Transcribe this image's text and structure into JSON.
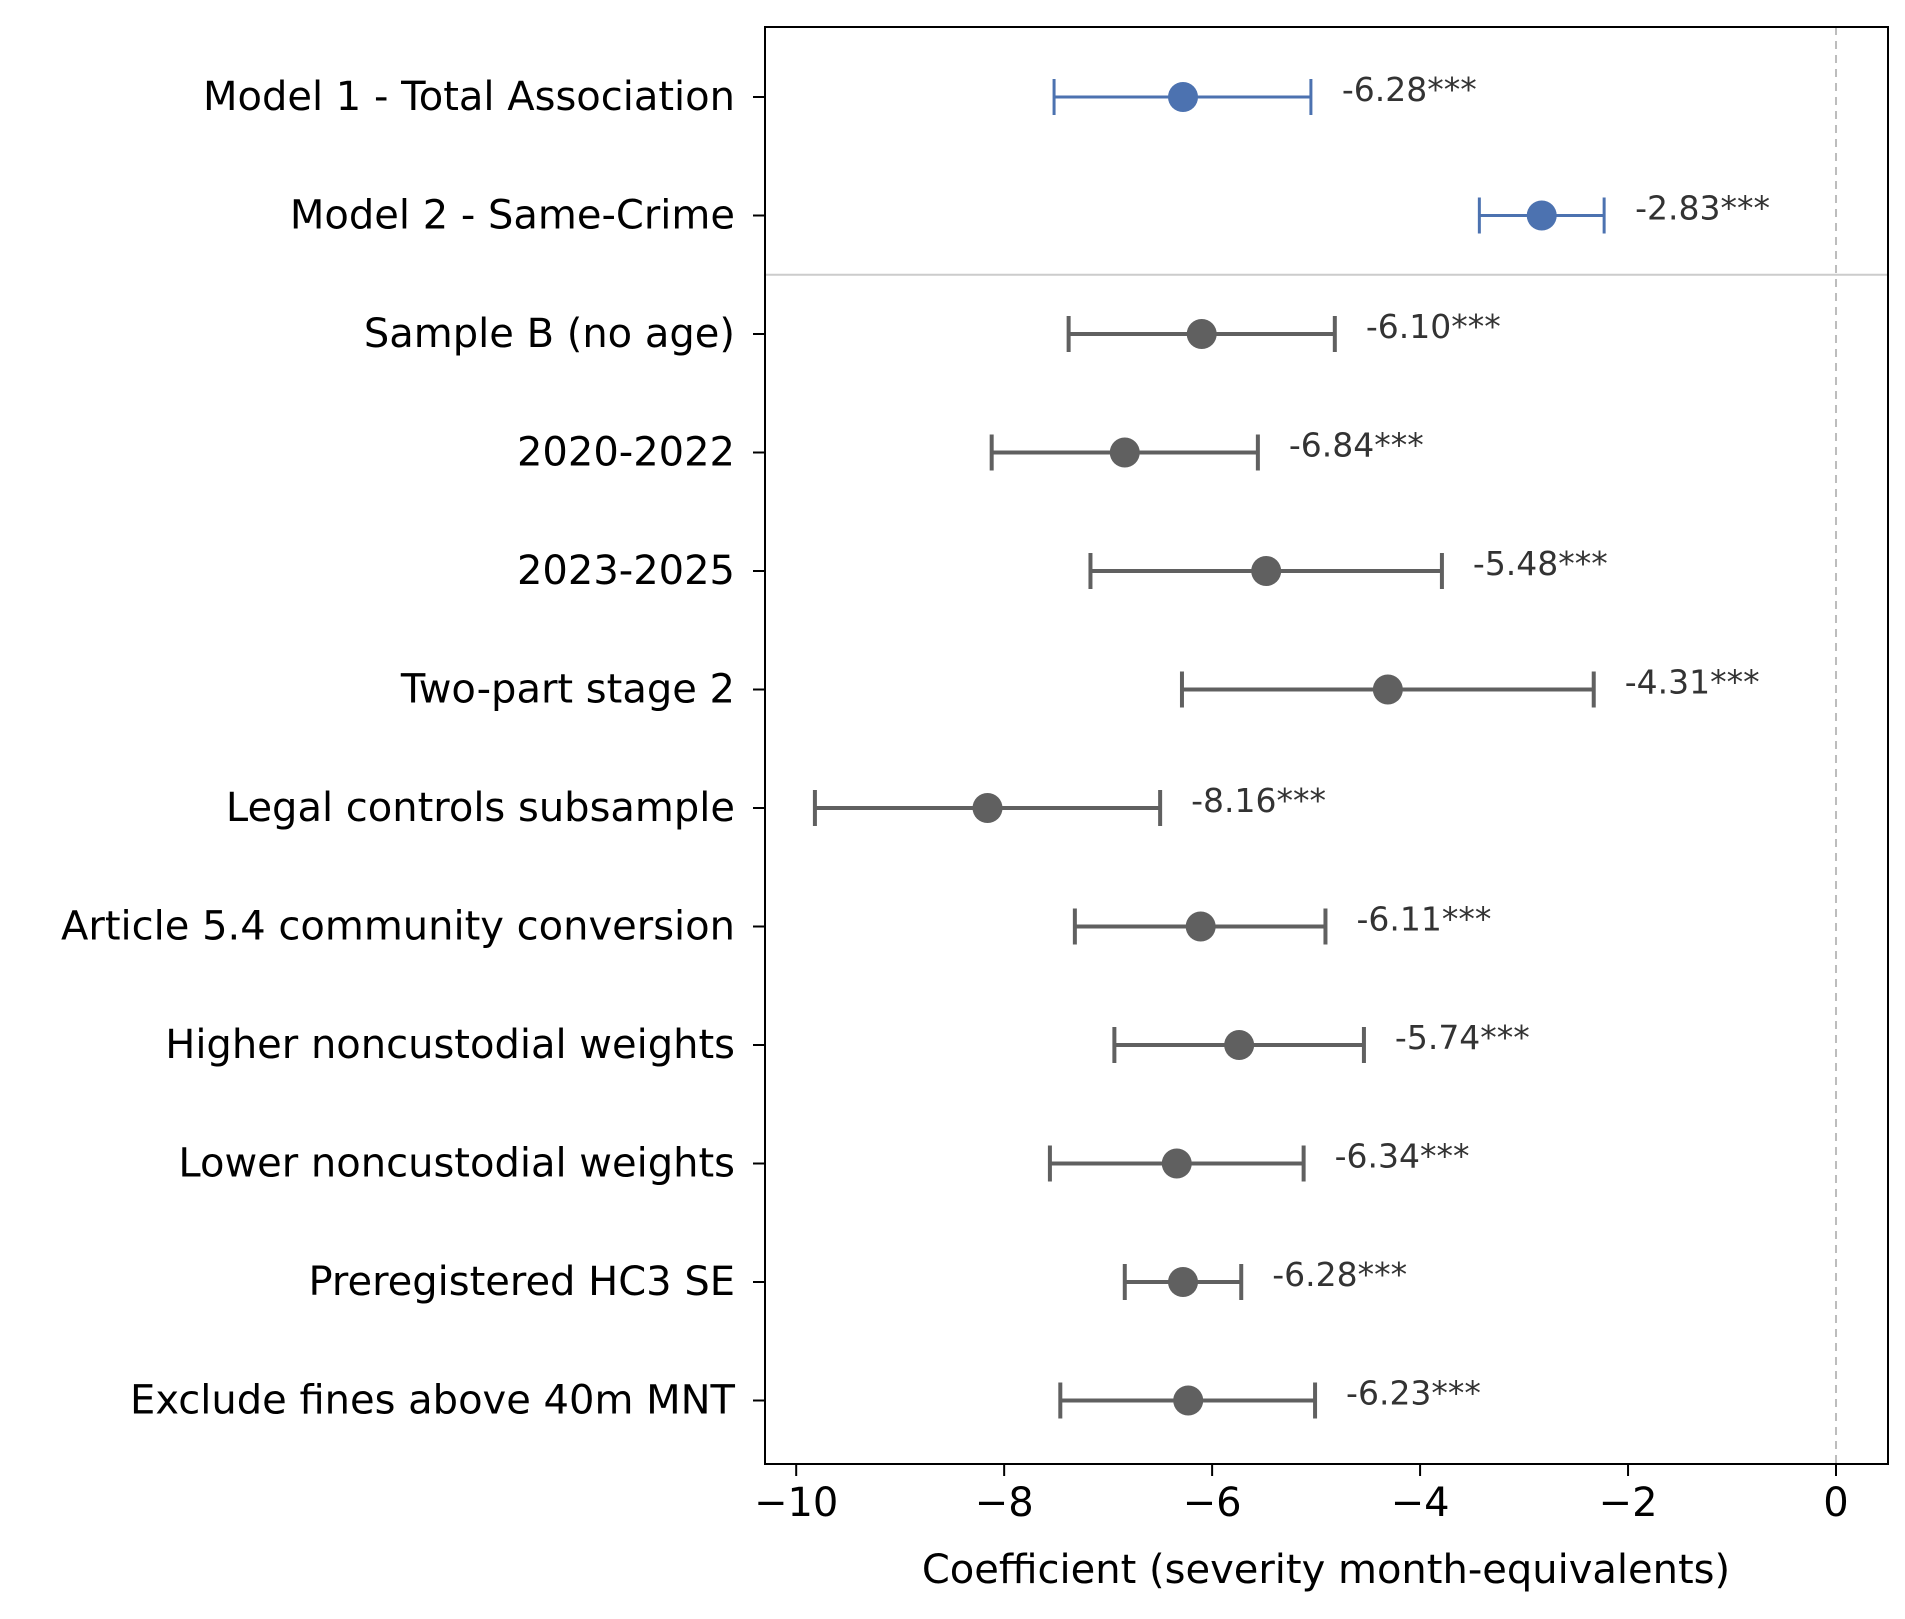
{
  "chart_data": {
    "type": "scatter",
    "subtype": "coefficient-plot-with-error-bars",
    "title": "",
    "xlabel": "Coefficient (severity month-equivalents)",
    "ylabel": "",
    "xlim": [
      -10.3,
      0.5
    ],
    "xticks": [
      -10,
      -8,
      -6,
      -4,
      -2,
      0
    ],
    "xtick_labels": [
      "−10",
      "−8",
      "−6",
      "−4",
      "−2",
      "0"
    ],
    "reference_line": {
      "x": 0,
      "style": "dashed"
    },
    "separator_after_row": 2,
    "grid": false,
    "legend": "none",
    "colors": {
      "primary": "#4c72b0",
      "robustness": "#606060"
    },
    "rows": [
      {
        "label": "Model 1 - Total Association",
        "estimate": -6.28,
        "ci_low": -7.52,
        "ci_high": -5.05,
        "annotation": "-6.28***",
        "group": "primary"
      },
      {
        "label": "Model 2 - Same-Crime",
        "estimate": -2.83,
        "ci_low": -3.43,
        "ci_high": -2.23,
        "annotation": "-2.83***",
        "group": "primary"
      },
      {
        "label": "Sample B (no age)",
        "estimate": -6.1,
        "ci_low": -7.38,
        "ci_high": -4.82,
        "annotation": "-6.10***",
        "group": "robustness"
      },
      {
        "label": "2020-2022",
        "estimate": -6.84,
        "ci_low": -8.12,
        "ci_high": -5.56,
        "annotation": "-6.84***",
        "group": "robustness"
      },
      {
        "label": "2023-2025",
        "estimate": -5.48,
        "ci_low": -7.17,
        "ci_high": -3.79,
        "annotation": "-5.48***",
        "group": "robustness"
      },
      {
        "label": "Two-part stage 2",
        "estimate": -4.31,
        "ci_low": -6.29,
        "ci_high": -2.33,
        "annotation": "-4.31***",
        "group": "robustness"
      },
      {
        "label": "Legal controls subsample",
        "estimate": -8.16,
        "ci_low": -9.82,
        "ci_high": -6.5,
        "annotation": "-8.16***",
        "group": "robustness"
      },
      {
        "label": "Article 5.4 community conversion",
        "estimate": -6.11,
        "ci_low": -7.32,
        "ci_high": -4.91,
        "annotation": "-6.11***",
        "group": "robustness"
      },
      {
        "label": "Higher noncustodial weights",
        "estimate": -5.74,
        "ci_low": -6.94,
        "ci_high": -4.54,
        "annotation": "-5.74***",
        "group": "robustness"
      },
      {
        "label": "Lower noncustodial weights",
        "estimate": -6.34,
        "ci_low": -7.56,
        "ci_high": -5.12,
        "annotation": "-6.34***",
        "group": "robustness"
      },
      {
        "label": "Preregistered HC3 SE",
        "estimate": -6.28,
        "ci_low": -6.84,
        "ci_high": -5.72,
        "annotation": "-6.28***",
        "group": "robustness"
      },
      {
        "label": "Exclude fines above 40m MNT",
        "estimate": -6.23,
        "ci_low": -7.46,
        "ci_high": -5.01,
        "annotation": "-6.23***",
        "group": "robustness"
      }
    ]
  }
}
